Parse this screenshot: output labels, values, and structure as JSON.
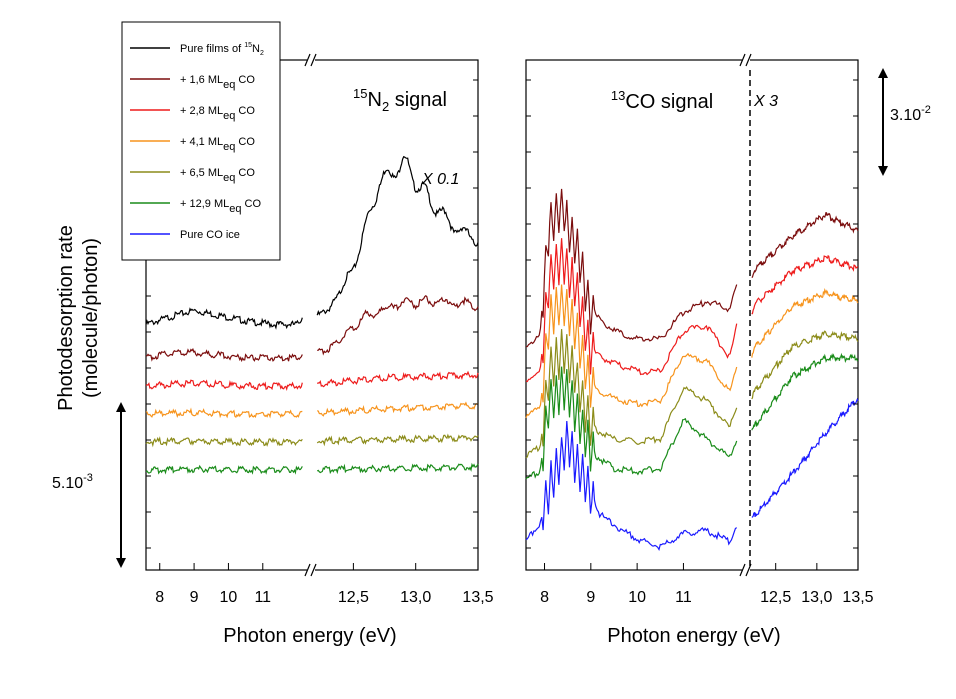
{
  "figure": {
    "y_axis_label_line1": "Photodesorption rate",
    "y_axis_label_line2": "(molecule/photon)",
    "scale_left": "5.10-3",
    "scale_right": "3.10-2"
  },
  "legend": {
    "entries": [
      {
        "label": "Pure films of 15N2",
        "color": "#000000"
      },
      {
        "label": "+ 1,6 MLeq CO",
        "color": "#7b0d0d"
      },
      {
        "label": "+ 2,8 MLeq CO",
        "color": "#ee1c1c"
      },
      {
        "label": "+ 4,1 MLeq CO",
        "color": "#f7941d"
      },
      {
        "label": "+ 6,5 MLeq CO",
        "color": "#8c8c1a"
      },
      {
        "label": "+ 12,9 MLeq CO",
        "color": "#1a8c1a"
      },
      {
        "label": "Pure CO ice",
        "color": "#1a1aff"
      }
    ]
  },
  "chart_data": [
    {
      "type": "line",
      "title": "15N2 signal",
      "annotation": "X 0.1",
      "xlabel": "Photon energy (eV)",
      "ylabel": "Photodesorption rate (molecule/photon)",
      "x_break": true,
      "x_ticks_low": [
        "8",
        "9",
        "10",
        "11"
      ],
      "x_ticks_high": [
        "12,5",
        "13,0",
        "13,5"
      ],
      "xlim_low": [
        7.6,
        12.2
      ],
      "xlim_high": [
        12.2,
        13.5
      ],
      "series": [
        {
          "name": "Pure films of 15N2",
          "offset": 0.52,
          "x": [
            7.6,
            8.4,
            9.0,
            9.8,
            10.6,
            11.3,
            12.0,
            12.3,
            12.5,
            12.7,
            12.9,
            13.1,
            13.3,
            13.5
          ],
          "y": [
            0.0,
            0.03,
            0.05,
            0.03,
            0.01,
            0.0,
            0.0,
            0.05,
            0.2,
            0.5,
            0.58,
            0.45,
            0.35,
            0.3
          ]
        },
        {
          "name": "+ 1,6 MLeq CO",
          "offset": 0.4,
          "x": [
            7.6,
            8.4,
            9.0,
            9.8,
            10.6,
            11.3,
            12.0,
            12.3,
            12.6,
            12.9,
            13.2,
            13.5
          ],
          "y": [
            0.0,
            0.02,
            0.02,
            0.01,
            0.0,
            0.0,
            0.0,
            0.03,
            0.15,
            0.2,
            0.2,
            0.19
          ]
        },
        {
          "name": "+ 2,8 MLeq CO",
          "offset": 0.3,
          "x": [
            7.6,
            9.0,
            10.5,
            12.0,
            12.3,
            12.8,
            13.5
          ],
          "y": [
            0.0,
            0.01,
            0.0,
            0.0,
            0.01,
            0.03,
            0.04
          ]
        },
        {
          "name": "+ 4,1 MLeq CO",
          "offset": 0.2,
          "x": [
            7.6,
            9.0,
            10.5,
            12.0,
            12.3,
            12.8,
            13.5
          ],
          "y": [
            0.0,
            0.005,
            0.0,
            0.0,
            0.005,
            0.02,
            0.03
          ]
        },
        {
          "name": "+ 6,5 MLeq CO",
          "offset": 0.1,
          "x": [
            7.6,
            9.0,
            10.5,
            12.0,
            12.3,
            12.8,
            13.5
          ],
          "y": [
            0.0,
            0.004,
            0.0,
            0.0,
            0.004,
            0.01,
            0.015
          ]
        },
        {
          "name": "+ 12,9 MLeq CO",
          "offset": 0.0,
          "x": [
            7.6,
            9.0,
            10.5,
            12.0,
            12.3,
            12.8,
            13.5
          ],
          "y": [
            0.0,
            0.003,
            0.0,
            0.0,
            0.003,
            0.005,
            0.01
          ]
        }
      ]
    },
    {
      "type": "line",
      "title": "13CO signal",
      "annotation": "X 3",
      "xlabel": "Photon energy (eV)",
      "x_break": true,
      "x_ticks_low": [
        "8",
        "9",
        "10",
        "11"
      ],
      "x_ticks_high": [
        "12,5",
        "13,0",
        "13,5"
      ],
      "xlim_low": [
        7.6,
        12.2
      ],
      "xlim_high": [
        12.2,
        13.5
      ],
      "series": [
        {
          "name": "+ 1,6 MLeq CO",
          "offset": 0.78,
          "x": [
            7.6,
            7.9,
            8.1,
            8.4,
            8.7,
            9.0,
            9.5,
            10.0,
            10.5,
            11.0,
            11.5,
            12.0,
            12.25,
            12.7,
            13.1,
            13.5
          ],
          "y": [
            0.0,
            0.03,
            0.45,
            0.5,
            0.35,
            0.12,
            0.05,
            0.02,
            0.02,
            0.12,
            0.16,
            0.13,
            0.28,
            0.4,
            0.48,
            0.42
          ]
        },
        {
          "name": "+ 2,8 MLeq CO",
          "offset": 0.65,
          "x": [
            7.6,
            7.9,
            8.1,
            8.4,
            8.7,
            9.0,
            9.5,
            10.0,
            10.5,
            11.0,
            11.5,
            12.0,
            12.25,
            12.7,
            13.1,
            13.5
          ],
          "y": [
            0.0,
            0.02,
            0.38,
            0.45,
            0.32,
            0.1,
            0.06,
            0.03,
            0.03,
            0.18,
            0.2,
            0.08,
            0.28,
            0.4,
            0.45,
            0.41
          ]
        },
        {
          "name": "+ 4,1 MLeq CO",
          "offset": 0.52,
          "x": [
            7.6,
            7.9,
            8.1,
            8.4,
            8.7,
            9.0,
            9.5,
            10.0,
            10.5,
            11.0,
            11.5,
            12.0,
            12.25,
            12.7,
            13.1,
            13.5
          ],
          "y": [
            0.0,
            0.02,
            0.35,
            0.42,
            0.3,
            0.1,
            0.06,
            0.04,
            0.05,
            0.22,
            0.2,
            0.08,
            0.25,
            0.4,
            0.45,
            0.42
          ]
        },
        {
          "name": "+ 6,5 MLeq CO",
          "offset": 0.37,
          "x": [
            7.6,
            7.9,
            8.1,
            8.4,
            8.7,
            9.0,
            9.5,
            10.0,
            10.5,
            11.0,
            11.5,
            12.0,
            12.25,
            12.7,
            13.1,
            13.5
          ],
          "y": [
            0.0,
            0.03,
            0.3,
            0.4,
            0.28,
            0.1,
            0.06,
            0.05,
            0.06,
            0.25,
            0.2,
            0.1,
            0.24,
            0.4,
            0.45,
            0.43
          ]
        },
        {
          "name": "+ 12,9 MLeq CO",
          "offset": 0.28,
          "x": [
            7.6,
            7.9,
            8.1,
            8.4,
            8.7,
            9.0,
            9.5,
            10.0,
            10.5,
            11.0,
            11.5,
            12.0,
            12.25,
            12.7,
            13.1,
            13.5
          ],
          "y": [
            0.0,
            0.03,
            0.28,
            0.35,
            0.25,
            0.1,
            0.04,
            0.03,
            0.04,
            0.22,
            0.15,
            0.08,
            0.2,
            0.38,
            0.45,
            0.45
          ]
        },
        {
          "name": "Pure CO ice",
          "offset": 0.0,
          "x": [
            7.6,
            7.9,
            8.2,
            8.5,
            8.8,
            9.2,
            9.6,
            10.0,
            10.5,
            11.0,
            11.5,
            12.0,
            12.25,
            12.7,
            13.1,
            13.5
          ],
          "y": [
            0.05,
            0.12,
            0.3,
            0.42,
            0.3,
            0.15,
            0.1,
            0.06,
            0.03,
            0.08,
            0.09,
            0.05,
            0.15,
            0.3,
            0.45,
            0.58
          ]
        }
      ]
    }
  ]
}
